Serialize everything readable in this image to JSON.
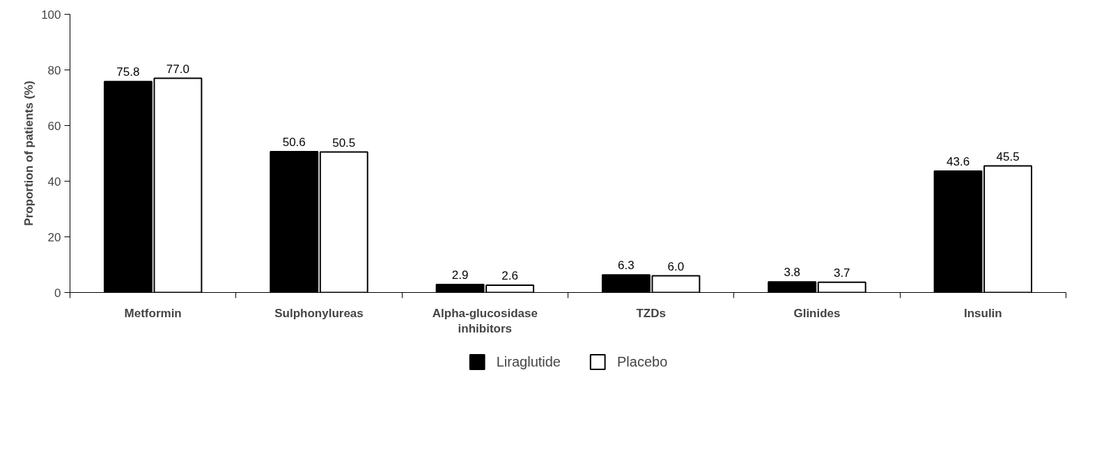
{
  "chart_data": {
    "type": "bar",
    "ylabel": "Proportion of patients (%)",
    "categories": [
      "Metformin",
      "Sulphonylureas",
      "Alpha-glucosidase inhibitors",
      "TZDs",
      "Glinides",
      "Insulin"
    ],
    "series": [
      {
        "name": "Liraglutide",
        "color": "#000000",
        "values": [
          75.8,
          50.6,
          2.9,
          6.3,
          3.8,
          43.6
        ],
        "value_labels": [
          "75.8",
          "50.6",
          "2.9",
          "6.3",
          "3.8",
          "43.6"
        ]
      },
      {
        "name": "Placebo",
        "color": "#ffffff",
        "values": [
          77.0,
          50.5,
          2.6,
          6.0,
          3.7,
          45.5
        ],
        "value_labels": [
          "77.0",
          "50.5",
          "2.6",
          "6.0",
          "3.7",
          "45.5"
        ]
      }
    ],
    "ylim": [
      0,
      100
    ],
    "yticks": [
      0,
      20,
      40,
      60,
      80,
      100
    ],
    "grid": false,
    "legend": "bottom"
  }
}
